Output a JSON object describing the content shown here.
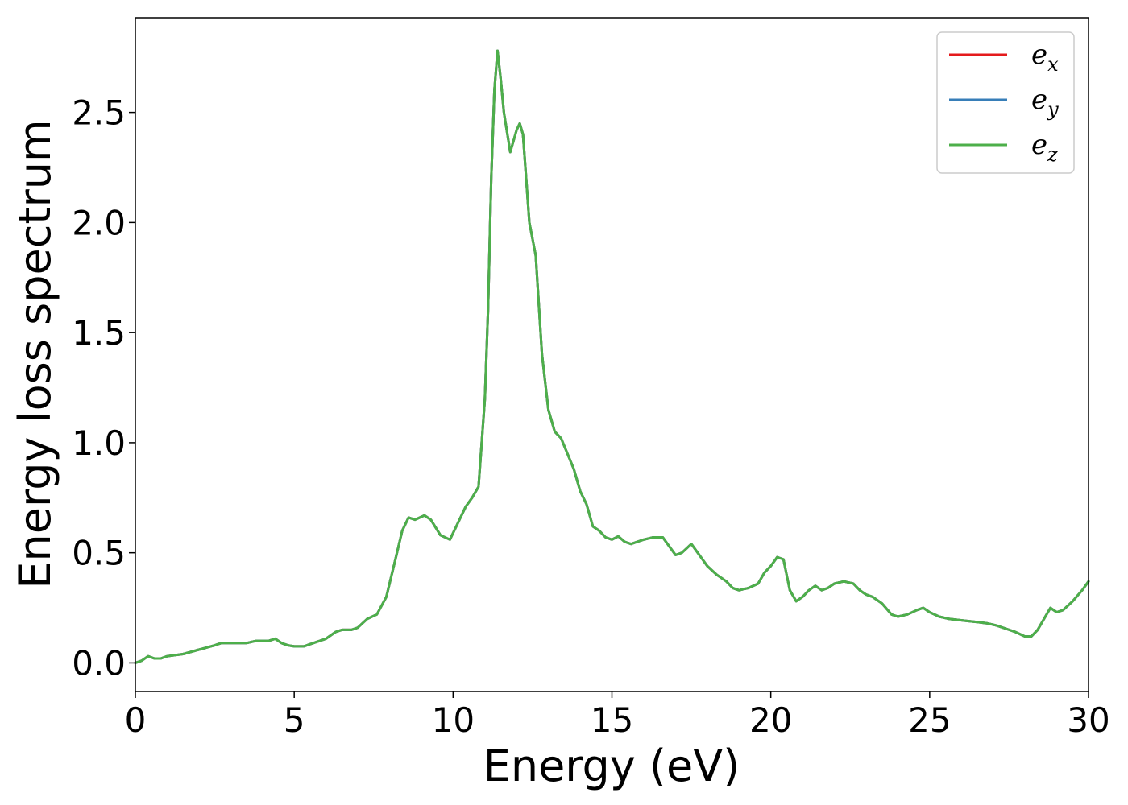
{
  "chart_data": {
    "type": "line",
    "title": "",
    "xlabel": "Energy (eV)",
    "ylabel": "Energy loss spectrum",
    "xlim": [
      0,
      30
    ],
    "ylim": [
      -0.13,
      2.93
    ],
    "xticks": [
      0,
      5,
      10,
      15,
      20,
      25,
      30
    ],
    "xtick_labels": [
      "0",
      "5",
      "10",
      "15",
      "20",
      "25",
      "30"
    ],
    "yticks": [
      0.0,
      0.5,
      1.0,
      1.5,
      2.0,
      2.5
    ],
    "ytick_labels": [
      "0.0",
      "0.5",
      "1.0",
      "1.5",
      "2.0",
      "2.5"
    ],
    "grid": false,
    "legend_position": "top-right",
    "x": [
      0,
      0.2,
      0.4,
      0.6,
      0.8,
      1,
      1.5,
      2,
      2.5,
      2.7,
      3,
      3.5,
      3.8,
      4,
      4.2,
      4.4,
      4.6,
      4.8,
      5,
      5.3,
      5.6,
      6,
      6.3,
      6.5,
      6.8,
      7,
      7.3,
      7.6,
      7.9,
      8.2,
      8.4,
      8.6,
      8.8,
      9.1,
      9.3,
      9.6,
      9.9,
      10.1,
      10.4,
      10.6,
      10.8,
      11,
      11.1,
      11.2,
      11.3,
      11.4,
      11.5,
      11.6,
      11.8,
      12,
      12.1,
      12.2,
      12.4,
      12.6,
      12.8,
      13,
      13.2,
      13.4,
      13.6,
      13.8,
      14,
      14.2,
      14.4,
      14.6,
      14.8,
      15,
      15.2,
      15.4,
      15.6,
      15.8,
      16,
      16.3,
      16.6,
      16.8,
      17,
      17.2,
      17.5,
      17.8,
      18,
      18.3,
      18.6,
      18.8,
      19,
      19.3,
      19.6,
      19.8,
      20,
      20.2,
      20.4,
      20.6,
      20.8,
      21,
      21.2,
      21.4,
      21.6,
      21.8,
      22,
      22.3,
      22.6,
      22.8,
      23,
      23.2,
      23.5,
      23.8,
      24,
      24.3,
      24.6,
      24.8,
      25,
      25.3,
      25.6,
      25.9,
      26.2,
      26.5,
      26.8,
      27.1,
      27.4,
      27.7,
      28,
      28.2,
      28.4,
      28.6,
      28.8,
      29,
      29.2,
      29.5,
      29.8,
      30
    ],
    "series": [
      {
        "name": "e_x",
        "label_base": "e",
        "label_sub": "x",
        "color": "#e41a1c",
        "y": [
          0.0,
          0.01,
          0.03,
          0.02,
          0.02,
          0.03,
          0.04,
          0.06,
          0.08,
          0.09,
          0.09,
          0.09,
          0.1,
          0.1,
          0.1,
          0.11,
          0.09,
          0.08,
          0.075,
          0.075,
          0.09,
          0.11,
          0.14,
          0.15,
          0.15,
          0.16,
          0.2,
          0.22,
          0.3,
          0.48,
          0.6,
          0.66,
          0.65,
          0.67,
          0.65,
          0.58,
          0.56,
          0.62,
          0.71,
          0.75,
          0.8,
          1.2,
          1.6,
          2.2,
          2.6,
          2.78,
          2.65,
          2.5,
          2.32,
          2.42,
          2.45,
          2.4,
          2.0,
          1.85,
          1.4,
          1.15,
          1.05,
          1.02,
          0.95,
          0.88,
          0.78,
          0.72,
          0.62,
          0.6,
          0.57,
          0.56,
          0.575,
          0.55,
          0.54,
          0.55,
          0.56,
          0.57,
          0.57,
          0.53,
          0.49,
          0.5,
          0.54,
          0.48,
          0.44,
          0.4,
          0.37,
          0.34,
          0.33,
          0.34,
          0.36,
          0.41,
          0.44,
          0.48,
          0.47,
          0.33,
          0.28,
          0.3,
          0.33,
          0.35,
          0.33,
          0.34,
          0.36,
          0.37,
          0.36,
          0.33,
          0.31,
          0.3,
          0.27,
          0.22,
          0.21,
          0.22,
          0.24,
          0.25,
          0.23,
          0.21,
          0.2,
          0.195,
          0.19,
          0.185,
          0.18,
          0.17,
          0.155,
          0.14,
          0.12,
          0.12,
          0.15,
          0.2,
          0.25,
          0.23,
          0.24,
          0.28,
          0.33,
          0.37
        ]
      },
      {
        "name": "e_y",
        "label_base": "e",
        "label_sub": "y",
        "color": "#377eb8",
        "y": [
          0.0,
          0.01,
          0.03,
          0.02,
          0.02,
          0.03,
          0.04,
          0.06,
          0.08,
          0.09,
          0.09,
          0.09,
          0.1,
          0.1,
          0.1,
          0.11,
          0.09,
          0.08,
          0.075,
          0.075,
          0.09,
          0.11,
          0.14,
          0.15,
          0.15,
          0.16,
          0.2,
          0.22,
          0.3,
          0.48,
          0.6,
          0.66,
          0.65,
          0.67,
          0.65,
          0.58,
          0.56,
          0.62,
          0.71,
          0.75,
          0.8,
          1.2,
          1.6,
          2.2,
          2.6,
          2.78,
          2.65,
          2.5,
          2.32,
          2.42,
          2.45,
          2.4,
          2.0,
          1.85,
          1.4,
          1.15,
          1.05,
          1.02,
          0.95,
          0.88,
          0.78,
          0.72,
          0.62,
          0.6,
          0.57,
          0.56,
          0.575,
          0.55,
          0.54,
          0.55,
          0.56,
          0.57,
          0.57,
          0.53,
          0.49,
          0.5,
          0.54,
          0.48,
          0.44,
          0.4,
          0.37,
          0.34,
          0.33,
          0.34,
          0.36,
          0.41,
          0.44,
          0.48,
          0.47,
          0.33,
          0.28,
          0.3,
          0.33,
          0.35,
          0.33,
          0.34,
          0.36,
          0.37,
          0.36,
          0.33,
          0.31,
          0.3,
          0.27,
          0.22,
          0.21,
          0.22,
          0.24,
          0.25,
          0.23,
          0.21,
          0.2,
          0.195,
          0.19,
          0.185,
          0.18,
          0.17,
          0.155,
          0.14,
          0.12,
          0.12,
          0.15,
          0.2,
          0.25,
          0.23,
          0.24,
          0.28,
          0.33,
          0.37
        ]
      },
      {
        "name": "e_z",
        "label_base": "e",
        "label_sub": "z",
        "color": "#4daf4a",
        "y": [
          0.0,
          0.01,
          0.03,
          0.02,
          0.02,
          0.03,
          0.04,
          0.06,
          0.08,
          0.09,
          0.09,
          0.09,
          0.1,
          0.1,
          0.1,
          0.11,
          0.09,
          0.08,
          0.075,
          0.075,
          0.09,
          0.11,
          0.14,
          0.15,
          0.15,
          0.16,
          0.2,
          0.22,
          0.3,
          0.48,
          0.6,
          0.66,
          0.65,
          0.67,
          0.65,
          0.58,
          0.56,
          0.62,
          0.71,
          0.75,
          0.8,
          1.2,
          1.6,
          2.2,
          2.6,
          2.78,
          2.65,
          2.5,
          2.32,
          2.42,
          2.45,
          2.4,
          2.0,
          1.85,
          1.4,
          1.15,
          1.05,
          1.02,
          0.95,
          0.88,
          0.78,
          0.72,
          0.62,
          0.6,
          0.57,
          0.56,
          0.575,
          0.55,
          0.54,
          0.55,
          0.56,
          0.57,
          0.57,
          0.53,
          0.49,
          0.5,
          0.54,
          0.48,
          0.44,
          0.4,
          0.37,
          0.34,
          0.33,
          0.34,
          0.36,
          0.41,
          0.44,
          0.48,
          0.47,
          0.33,
          0.28,
          0.3,
          0.33,
          0.35,
          0.33,
          0.34,
          0.36,
          0.37,
          0.36,
          0.33,
          0.31,
          0.3,
          0.27,
          0.22,
          0.21,
          0.22,
          0.24,
          0.25,
          0.23,
          0.21,
          0.2,
          0.195,
          0.19,
          0.185,
          0.18,
          0.17,
          0.155,
          0.14,
          0.12,
          0.12,
          0.15,
          0.2,
          0.25,
          0.23,
          0.24,
          0.28,
          0.33,
          0.37
        ]
      }
    ]
  }
}
